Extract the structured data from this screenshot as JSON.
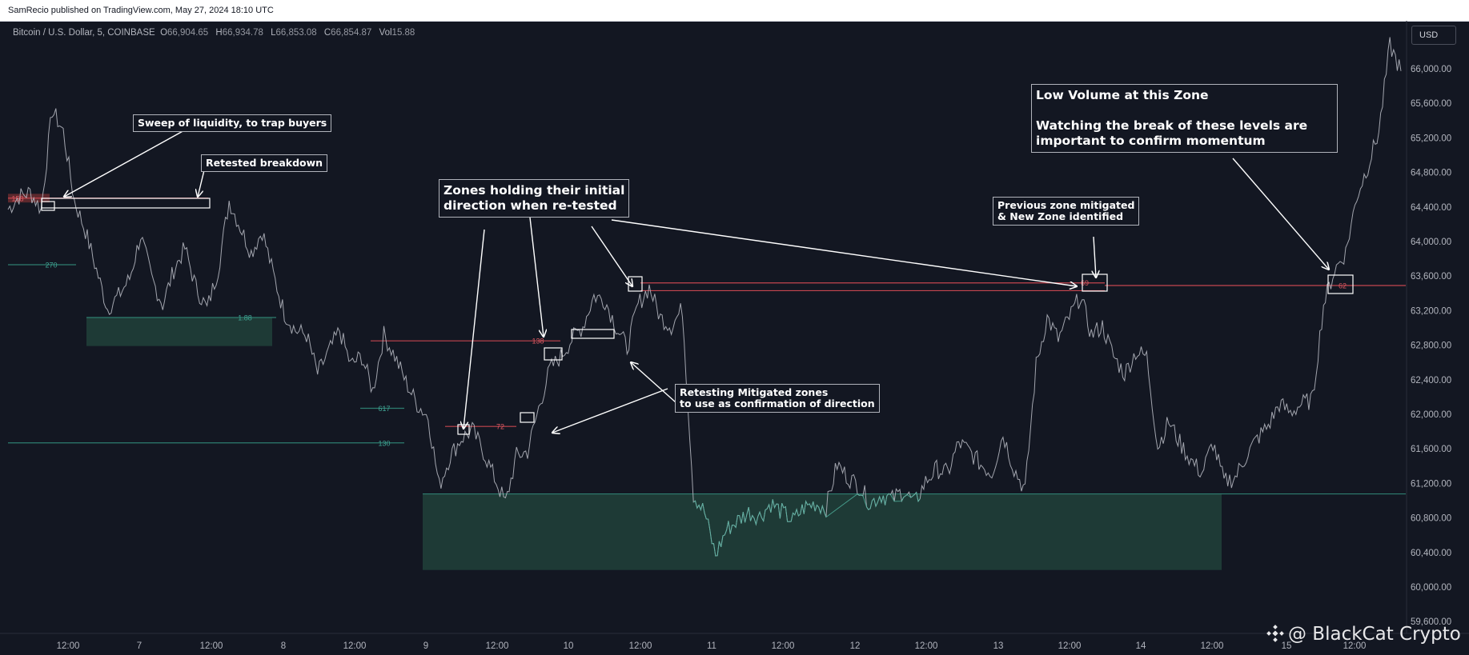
{
  "header": {
    "published": "SamRecio published on TradingView.com, May 27, 2024 18:10 UTC"
  },
  "symbol": {
    "name": "Bitcoin / U.S. Dollar, 5, COINBASE",
    "open_label": "O",
    "open": "66,904.65",
    "high_label": "H",
    "high": "66,934.78",
    "low_label": "L",
    "low": "66,853.08",
    "close_label": "C",
    "close": "66,854.87",
    "vol_label": "Vol",
    "vol": "15.88"
  },
  "currency_button": "USD",
  "watermark": "@ BlackCat Crypto",
  "colors": {
    "background": "#131722",
    "price_line": "#b2b5be",
    "bullish_zone": "#1e3a36",
    "bearish_zone": "#6b2b2f",
    "supply_line": "#c4464f",
    "demand_line": "#2e7e70",
    "annotation": "#ffffff"
  },
  "annotations": {
    "sweep": "Sweep of liquidity, to trap buyers",
    "retested": "Retested breakdown",
    "zones_holding": "Zones holding their initial\ndirection when re-tested",
    "retesting": "Retesting Mitigated zones\nto use as confirmation of direction",
    "previous_zone": "Previous zone mitigated\n& New Zone identified",
    "low_volume": "Low Volume at this Zone\n\nWatching the break of these levels are\nimportant to confirm momentum"
  },
  "zone_labels": [
    "158",
    "270",
    "1.88",
    "528",
    "617",
    "130",
    "72",
    "138",
    "69",
    "62"
  ],
  "chart_data": {
    "type": "line",
    "title": "",
    "xlabel": "",
    "ylabel": "",
    "x_ticks": [
      "12:00",
      "7",
      "12:00",
      "8",
      "12:00",
      "9",
      "12:00",
      "10",
      "12:00",
      "11",
      "12:00",
      "12",
      "12:00",
      "13",
      "12:00",
      "14",
      "12:00",
      "15",
      "12:00"
    ],
    "y_ticks": [
      "66,000.00",
      "65,600.00",
      "65,200.00",
      "64,800.00",
      "64,400.00",
      "64,000.00",
      "63,600.00",
      "63,200.00",
      "62,800.00",
      "62,400.00",
      "62,000.00",
      "61,600.00",
      "61,200.00",
      "60,800.00",
      "60,400.00",
      "60,000.00",
      "59,600.00"
    ],
    "ylim": [
      59600,
      66500
    ],
    "grid": false,
    "series": [
      {
        "values": [
          64300,
          64450,
          64500,
          64300,
          65450,
          65200,
          64400,
          64050,
          63600,
          63150,
          63300,
          63500,
          64000,
          63500,
          63200,
          63600,
          63850,
          63400,
          63150,
          63600,
          64400,
          64100,
          63800,
          64050,
          63550,
          63100,
          62900,
          62850,
          62400,
          62650,
          62900,
          62500,
          62600,
          62200,
          62850,
          62600,
          62300,
          62050,
          61900,
          61100,
          61450,
          61650,
          61750,
          61500,
          61200,
          60900,
          61450,
          61500,
          62000,
          62450,
          62600,
          62800,
          62950,
          63300,
          63250,
          62950,
          62700,
          63200,
          63400,
          63050,
          62950,
          63150,
          61000,
          60800,
          60300,
          60600,
          60700,
          60800,
          60750,
          60900,
          60800,
          60700,
          60850,
          60900,
          60850,
          61350,
          61200,
          61100,
          60900,
          61000,
          60950,
          61050,
          60900,
          61150,
          61300,
          61250,
          61600,
          61500,
          61350,
          61250,
          61700,
          61300,
          61050,
          62500,
          63050,
          62800,
          63050,
          63300,
          62850,
          62950,
          62600,
          62400,
          62650,
          62600,
          61550,
          61850,
          61600,
          61400,
          61250,
          61600,
          61150,
          61200,
          61450,
          61650,
          61800,
          62050,
          61950,
          62050,
          62100,
          63200,
          63600,
          63800,
          64450,
          64800,
          65200,
          66200,
          65900
        ]
      }
    ],
    "levels": [
      {
        "price": 64430,
        "kind": "supply",
        "label": "158"
      },
      {
        "price": 63660,
        "kind": "demand",
        "label": "270"
      },
      {
        "price": 63050,
        "kind": "demand",
        "label": "1.88"
      },
      {
        "price": 62780,
        "kind": "supply",
        "label": "138"
      },
      {
        "price": 62000,
        "kind": "demand",
        "label": "617"
      },
      {
        "price": 61790,
        "kind": "supply",
        "label": "72"
      },
      {
        "price": 61600,
        "kind": "demand",
        "label": "130"
      },
      {
        "price": 63450,
        "kind": "supply",
        "label": "69"
      },
      {
        "price": 63360,
        "kind": "supply",
        "label": ""
      },
      {
        "price": 63420,
        "kind": "supply",
        "label": "62"
      },
      {
        "price": 61010,
        "kind": "demand",
        "label": ""
      }
    ],
    "zones": [
      {
        "kind": "demand",
        "from": 60130,
        "to": 61010
      },
      {
        "kind": "demand",
        "from": 62720,
        "to": 63050
      },
      {
        "kind": "supply",
        "from": 64380,
        "to": 64480
      }
    ]
  }
}
